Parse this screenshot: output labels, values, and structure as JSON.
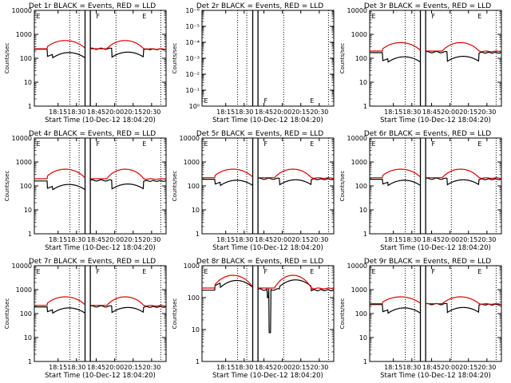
{
  "chart_data": [
    {
      "type": "line",
      "title": "Det 1r BLACK = Events, RED = LLD",
      "xlabel": "Start Time (10-Dec-12 18:04:20)",
      "ylabel": "Counts/sec",
      "yscale": "log",
      "ylim": [
        1,
        10000
      ],
      "yticks": [
        "1",
        "10",
        "100",
        "1000",
        "10000"
      ],
      "xticks": [
        "18:15",
        "18:30",
        "18:45",
        "20:00",
        "20:15",
        "20:30"
      ],
      "flags": [
        "E",
        "F",
        "E"
      ],
      "series": [
        {
          "name": "Events",
          "color": "#000000",
          "day_level": 150,
          "night_level": 250,
          "spikes": []
        },
        {
          "name": "LLD",
          "color": "#e00000",
          "day_level": 550,
          "night_level": 250
        }
      ]
    },
    {
      "type": "line",
      "title": "Det 2r BLACK = Events, RED = LLD",
      "xlabel": "Start Time (10-Dec-12 18:04:20)",
      "ylabel": "Counts/sec",
      "yscale": "log",
      "ylim": [
        1,
        1e-06
      ],
      "yticks": [
        "10⁰",
        "10⁻¹",
        "10⁻²",
        "10⁻³",
        "10⁻⁴",
        "10⁻⁵",
        "10⁻⁶"
      ],
      "xticks": [
        "18:15",
        "18:30",
        "18:45",
        "20:00",
        "20:15",
        "20:30"
      ],
      "flags": [
        "E",
        "F",
        "E"
      ],
      "series": []
    },
    {
      "type": "line",
      "title": "Det 3r BLACK = Events, RED = LLD",
      "xlabel": "Start Time (10-Dec-12 18:04:20)",
      "ylabel": "Counts/sec",
      "yscale": "log",
      "ylim": [
        1,
        10000
      ],
      "yticks": [
        "1",
        "10",
        "100",
        "1000",
        "10000"
      ],
      "xticks": [
        "18:15",
        "18:30",
        "18:45",
        "20:00",
        "20:15",
        "20:30"
      ],
      "flags": [
        "E",
        "F",
        "E"
      ],
      "series": [
        {
          "name": "Events",
          "color": "#000000",
          "day_level": 100,
          "night_level": 180,
          "spikes": []
        },
        {
          "name": "LLD",
          "color": "#e00000",
          "day_level": 450,
          "night_level": 200
        }
      ]
    },
    {
      "type": "line",
      "title": "Det 4r BLACK = Events, RED = LLD",
      "xlabel": "Start Time (10-Dec-12 18:04:20)",
      "ylabel": "Counts/sec",
      "yscale": "log",
      "ylim": [
        1,
        10000
      ],
      "yticks": [
        "1",
        "10",
        "100",
        "1000",
        "10000"
      ],
      "xticks": [
        "18:15",
        "18:30",
        "18:45",
        "20:00",
        "20:15",
        "20:30"
      ],
      "flags": [
        "E",
        "F",
        "E"
      ],
      "series": [
        {
          "name": "Events",
          "color": "#000000",
          "day_level": 100,
          "night_level": 170,
          "spikes": []
        },
        {
          "name": "LLD",
          "color": "#e00000",
          "day_level": 500,
          "night_level": 200
        }
      ]
    },
    {
      "type": "line",
      "title": "Det 5r BLACK = Events, RED = LLD",
      "xlabel": "Start Time (10-Dec-12 18:04:20)",
      "ylabel": "Counts/sec",
      "yscale": "log",
      "ylim": [
        1,
        10000
      ],
      "yticks": [
        "1",
        "10",
        "100",
        "1000",
        "10000"
      ],
      "xticks": [
        "18:15",
        "18:30",
        "18:45",
        "20:00",
        "20:15",
        "20:30"
      ],
      "flags": [
        "E",
        "F",
        "E"
      ],
      "series": [
        {
          "name": "Events",
          "color": "#000000",
          "day_level": 150,
          "night_level": 200,
          "spikes": []
        },
        {
          "name": "LLD",
          "color": "#e00000",
          "day_level": 500,
          "night_level": 220
        }
      ]
    },
    {
      "type": "line",
      "title": "Det 6r BLACK = Events, RED = LLD",
      "xlabel": "Start Time (10-Dec-12 18:04:20)",
      "ylabel": "Counts/sec",
      "yscale": "log",
      "ylim": [
        1,
        10000
      ],
      "yticks": [
        "1",
        "10",
        "100",
        "1000",
        "10000"
      ],
      "xticks": [
        "18:15",
        "18:30",
        "18:45",
        "20:00",
        "20:15",
        "20:30"
      ],
      "flags": [
        "E",
        "F",
        "E"
      ],
      "series": [
        {
          "name": "Events",
          "color": "#000000",
          "day_level": 150,
          "night_level": 200,
          "spikes": []
        },
        {
          "name": "LLD",
          "color": "#e00000",
          "day_level": 500,
          "night_level": 220
        }
      ]
    },
    {
      "type": "line",
      "title": "Det 7r BLACK = Events, RED = LLD",
      "xlabel": "Start Time (10-Dec-12 18:04:20)",
      "ylabel": "Counts/sec",
      "yscale": "log",
      "ylim": [
        1,
        10000
      ],
      "yticks": [
        "1",
        "10",
        "100",
        "1000",
        "10000"
      ],
      "xticks": [
        "18:15",
        "18:30",
        "18:45",
        "20:00",
        "20:15",
        "20:30"
      ],
      "flags": [
        "E",
        "F",
        "E"
      ],
      "series": [
        {
          "name": "Events",
          "color": "#000000",
          "day_level": 150,
          "night_level": 200,
          "spikes": []
        },
        {
          "name": "LLD",
          "color": "#e00000",
          "day_level": 500,
          "night_level": 220
        }
      ]
    },
    {
      "type": "line",
      "title": "Det 8r BLACK = Events, RED = LLD",
      "xlabel": "Start Time (10-Dec-12 18:04:20)",
      "ylabel": "Counts/sec",
      "yscale": "log",
      "ylim": [
        1,
        1000
      ],
      "yticks": [
        "1",
        "10",
        "100",
        "1000"
      ],
      "xticks": [
        "18:15",
        "18:30",
        "18:45",
        "20:00",
        "20:15",
        "20:30"
      ],
      "flags": [
        "E",
        "F",
        "E"
      ],
      "series": [
        {
          "name": "Events",
          "color": "#000000",
          "day_level": 300,
          "night_level": 180,
          "spikes": [
            {
              "t": 0.5,
              "min": 100
            },
            {
              "t": 0.515,
              "min": 8
            }
          ]
        },
        {
          "name": "LLD",
          "color": "#e00000",
          "day_level": 500,
          "night_level": 200
        }
      ]
    },
    {
      "type": "line",
      "title": "Det 9r BLACK = Events, RED = LLD",
      "xlabel": "Start Time (10-Dec-12 18:04:20)",
      "ylabel": "Counts/sec",
      "yscale": "log",
      "ylim": [
        1,
        10000
      ],
      "yticks": [
        "1",
        "10",
        "100",
        "1000",
        "10000"
      ],
      "xticks": [
        "18:15",
        "18:30",
        "18:45",
        "20:00",
        "20:15",
        "20:30"
      ],
      "flags": [
        "E",
        "F",
        "E"
      ],
      "series": [
        {
          "name": "Events",
          "color": "#000000",
          "day_level": 150,
          "night_level": 250,
          "spikes": []
        },
        {
          "name": "LLD",
          "color": "#e00000",
          "day_level": 500,
          "night_level": 260
        }
      ]
    }
  ]
}
